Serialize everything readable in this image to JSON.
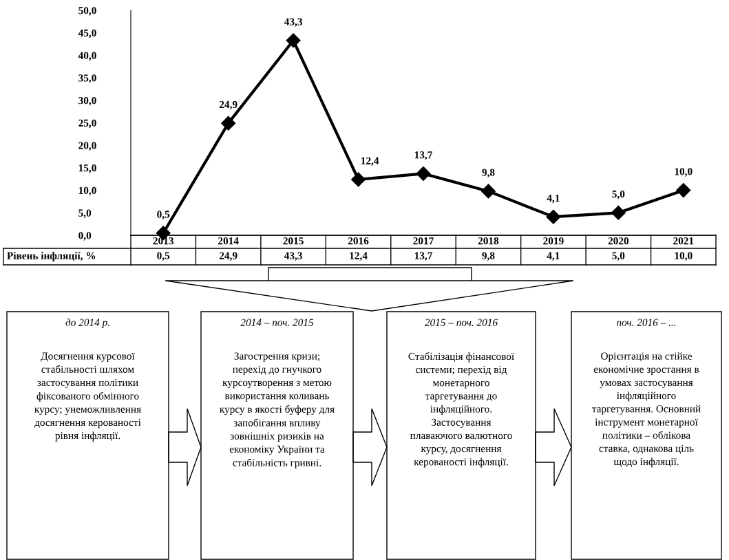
{
  "chart_data": {
    "type": "line",
    "categories": [
      "2013",
      "2014",
      "2015",
      "2016",
      "2017",
      "2018",
      "2019",
      "2020",
      "2021"
    ],
    "series": [
      {
        "name": "Рівень інфляції, %",
        "color": "#000000",
        "values": [
          0.5,
          24.9,
          43.3,
          12.4,
          13.7,
          9.8,
          4.1,
          5.0,
          10.0
        ],
        "value_labels": [
          "0,5",
          "24,9",
          "43,3",
          "12,4",
          "13,7",
          "9,8",
          "4,1",
          "5,0",
          "10,0"
        ]
      }
    ],
    "ylim": [
      0,
      50
    ],
    "yticks": [
      {
        "value": 0,
        "label": "0,0"
      },
      {
        "value": 5,
        "label": "5,0"
      },
      {
        "value": 10,
        "label": "10,0"
      },
      {
        "value": 15,
        "label": "15,0"
      },
      {
        "value": 20,
        "label": "20,0"
      },
      {
        "value": 25,
        "label": "25,0"
      },
      {
        "value": 30,
        "label": "30,0"
      },
      {
        "value": 35,
        "label": "35,0"
      },
      {
        "value": 40,
        "label": "40,0"
      },
      {
        "value": 45,
        "label": "45,0"
      },
      {
        "value": 50,
        "label": "50,0"
      }
    ],
    "marker": "diamond",
    "line_style": "solid",
    "grid": false,
    "legend": "bottom left",
    "annotations": [
      "до 2014 р.",
      "Досягнення курсової\nстабільності шляхом\nзастосування політики\nфіксованого обмінного\nкурсу; унеможливлення\nдосягнення керованості\nрівня інфляції.",
      "2014 – поч. 2015",
      "Загострення кризи;\nперехід до гнучкого\nкурсоутворення з метою\nвикористання коливань\nкурсу в якості буферу для\nзапобігання впливу\nзовнішніх ризиків на\nекономіку України та\nстабільність гривні.",
      "2015 – поч. 2016",
      "Стабілізація фінансової\nсистеми; перехід від\nмонетарного\nтаргетування до\nінфляційного.\nЗастосування\nплаваючого валютного\nкурсу, досягнення\nкерованості інфляції.",
      "поч. 2016 – ...",
      "Орієнтація на стійке\nекономічне зростання в\nумовах застосування\nінфляційного\nтаргетування. Основний\nінструмент монетарної\nполітики – облікова\nставка, однакова ціль\nщодо інфляції."
    ]
  }
}
